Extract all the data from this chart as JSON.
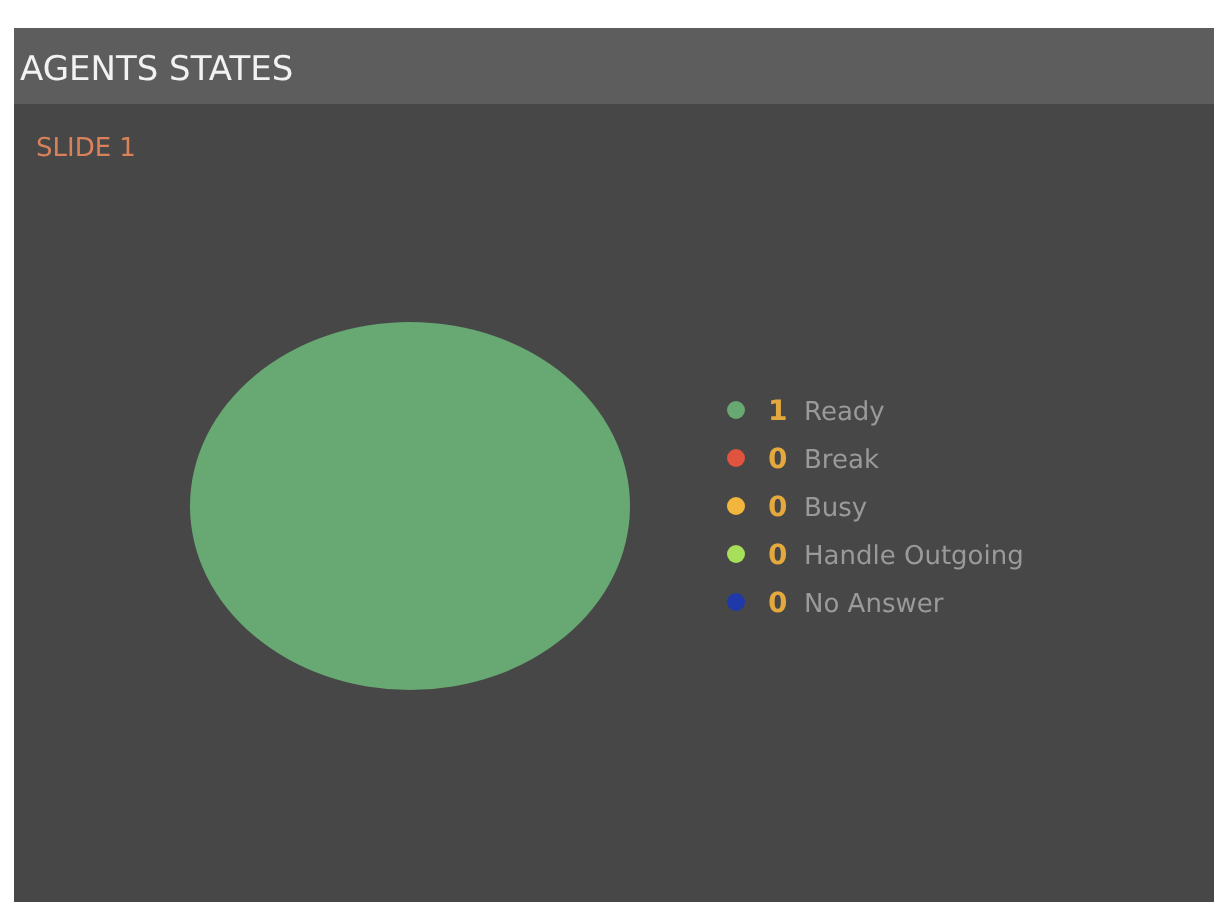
{
  "chart_data": {
    "type": "pie",
    "title": "AGENTS STATES",
    "subtitle": "SLIDE 1",
    "categories": [
      "Ready",
      "Break",
      "Busy",
      "Handle Outgoing",
      "No Answer"
    ],
    "values": [
      1,
      0,
      0,
      0,
      0
    ],
    "colors": [
      "#67a873",
      "#e0533f",
      "#f2b63c",
      "#a8df5a",
      "#1f3aa8"
    ],
    "value_labels": [
      "1",
      "0",
      "0",
      "0",
      "0"
    ],
    "legend": "right"
  }
}
